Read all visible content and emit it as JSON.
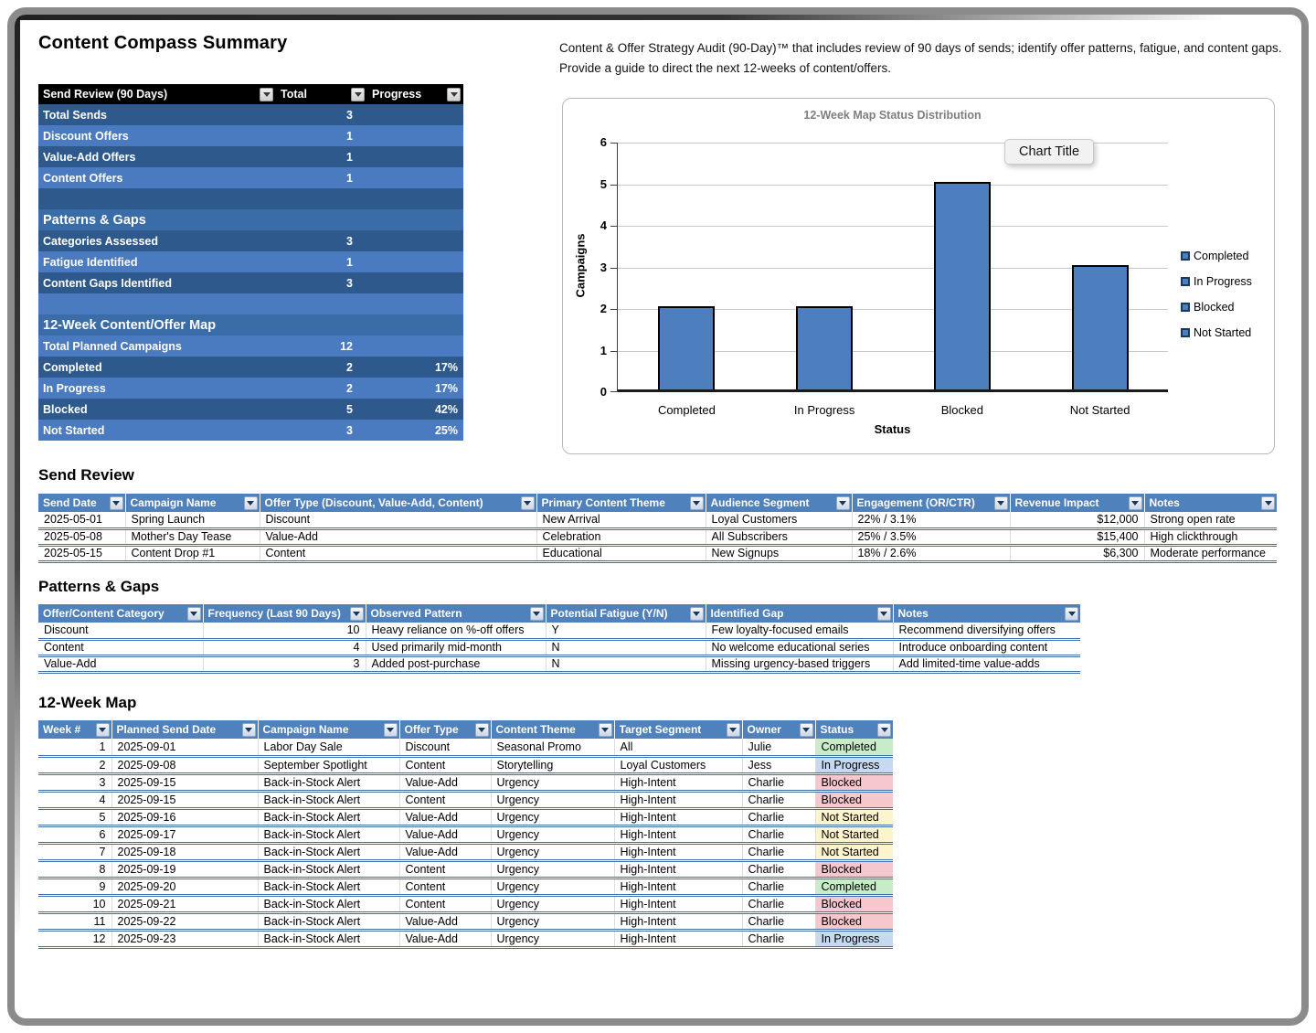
{
  "summary": {
    "title": "Content Compass Summary",
    "table": {
      "col_headers": [
        "Send Review (90 Days)",
        "Total",
        "Progress"
      ],
      "rows": [
        {
          "label": "Total Sends",
          "total": "3",
          "progress": "",
          "style": "dark"
        },
        {
          "label": "Discount Offers",
          "total": "1",
          "progress": "",
          "style": "light"
        },
        {
          "label": "Value-Add Offers",
          "total": "1",
          "progress": "",
          "style": "dark"
        },
        {
          "label": "Content Offers",
          "total": "1",
          "progress": "",
          "style": "light"
        },
        {
          "label": "",
          "total": "",
          "progress": "",
          "style": "dark"
        },
        {
          "label": "Patterns & Gaps",
          "total": "",
          "progress": "",
          "style": "section"
        },
        {
          "label": "Categories Assessed",
          "total": "3",
          "progress": "",
          "style": "dark"
        },
        {
          "label": "Fatigue Identified",
          "total": "1",
          "progress": "",
          "style": "light"
        },
        {
          "label": "Content Gaps Identified",
          "total": "3",
          "progress": "",
          "style": "dark"
        },
        {
          "label": "",
          "total": "",
          "progress": "",
          "style": "light"
        },
        {
          "label": "12-Week Content/Offer Map",
          "total": "",
          "progress": "",
          "style": "section"
        },
        {
          "label": "Total Planned Campaigns",
          "total": "12",
          "progress": "",
          "style": "light"
        },
        {
          "label": "Completed",
          "total": "2",
          "progress": "17%",
          "style": "dark"
        },
        {
          "label": "In Progress",
          "total": "2",
          "progress": "17%",
          "style": "light"
        },
        {
          "label": "Blocked",
          "total": "5",
          "progress": "42%",
          "style": "dark"
        },
        {
          "label": "Not Started",
          "total": "3",
          "progress": "25%",
          "style": "light"
        }
      ]
    }
  },
  "description": "Content & Offer Strategy Audit (90-Day)™ that includes review of 90 days of sends; identify offer patterns, fatigue, and content gaps. Provide a guide to direct the next 12-weeks of content/offers.",
  "chart_data": {
    "type": "bar",
    "title": "12-Week Map Status Distribution",
    "overlay_label": "Chart Title",
    "categories": [
      "Completed",
      "In Progress",
      "Blocked",
      "Not Started"
    ],
    "values": [
      2,
      2,
      5,
      3
    ],
    "xlabel": "Status",
    "ylabel": "Campaigns",
    "ylim": [
      0,
      6
    ],
    "yticks": [
      0,
      1,
      2,
      3,
      4,
      5,
      6
    ],
    "legend": [
      "Completed",
      "In Progress",
      "Blocked",
      "Not Started"
    ],
    "legend_position": "right",
    "bar_color": "#4d7ebd",
    "grid": true
  },
  "send_review": {
    "heading": "Send Review",
    "headers": [
      "Send Date",
      "Campaign Name",
      "Offer Type (Discount, Value-Add, Content)",
      "Primary Content Theme",
      "Audience Segment",
      "Engagement (OR/CTR)",
      "Revenue Impact",
      "Notes"
    ],
    "rows": [
      [
        "2025-05-01",
        "Spring Launch",
        "Discount",
        "New Arrival",
        "Loyal Customers",
        "22% / 3.1%",
        "$12,000",
        "Strong open rate"
      ],
      [
        "2025-05-08",
        "Mother's Day Tease",
        "Value-Add",
        "Celebration",
        "All Subscribers",
        "25% / 3.5%",
        "$15,400",
        "High clickthrough"
      ],
      [
        "2025-05-15",
        "Content Drop #1",
        "Content",
        "Educational",
        "New Signups",
        "18% / 2.6%",
        "$6,300",
        "Moderate performance"
      ]
    ]
  },
  "patterns_gaps": {
    "heading": "Patterns & Gaps",
    "headers": [
      "Offer/Content Category",
      "Frequency (Last 90 Days)",
      "Observed Pattern",
      "Potential Fatigue (Y/N)",
      "Identified Gap",
      "Notes"
    ],
    "rows": [
      [
        "Discount",
        "10",
        "Heavy reliance on %-off offers",
        "Y",
        "Few loyalty-focused emails",
        "Recommend diversifying offers"
      ],
      [
        "Content",
        "4",
        "Used primarily mid-month",
        "N",
        "No welcome educational series",
        "Introduce onboarding content"
      ],
      [
        "Value-Add",
        "3",
        "Added post-purchase",
        "N",
        "Missing urgency-based triggers",
        "Add limited-time value-adds"
      ]
    ]
  },
  "twelve_week_map": {
    "heading": "12-Week Map",
    "headers": [
      "Week #",
      "Planned Send Date",
      "Campaign Name",
      "Offer Type",
      "Content Theme",
      "Target Segment",
      "Owner",
      "Status"
    ],
    "rows": [
      [
        "1",
        "2025-09-01",
        "Labor Day Sale",
        "Discount",
        "Seasonal Promo",
        "All",
        "Julie",
        "Completed"
      ],
      [
        "2",
        "2025-09-08",
        "September Spotlight",
        "Content",
        "Storytelling",
        "Loyal Customers",
        "Jess",
        "In Progress"
      ],
      [
        "3",
        "2025-09-15",
        "Back-in-Stock Alert",
        "Value-Add",
        "Urgency",
        "High-Intent",
        "Charlie",
        "Blocked"
      ],
      [
        "4",
        "2025-09-15",
        "Back-in-Stock Alert",
        "Content",
        "Urgency",
        "High-Intent",
        "Charlie",
        "Blocked"
      ],
      [
        "5",
        "2025-09-16",
        "Back-in-Stock Alert",
        "Value-Add",
        "Urgency",
        "High-Intent",
        "Charlie",
        "Not Started"
      ],
      [
        "6",
        "2025-09-17",
        "Back-in-Stock Alert",
        "Value-Add",
        "Urgency",
        "High-Intent",
        "Charlie",
        "Not Started"
      ],
      [
        "7",
        "2025-09-18",
        "Back-in-Stock Alert",
        "Value-Add",
        "Urgency",
        "High-Intent",
        "Charlie",
        "Not Started"
      ],
      [
        "8",
        "2025-09-19",
        "Back-in-Stock Alert",
        "Content",
        "Urgency",
        "High-Intent",
        "Charlie",
        "Blocked"
      ],
      [
        "9",
        "2025-09-20",
        "Back-in-Stock Alert",
        "Content",
        "Urgency",
        "High-Intent",
        "Charlie",
        "Completed"
      ],
      [
        "10",
        "2025-09-21",
        "Back-in-Stock Alert",
        "Content",
        "Urgency",
        "High-Intent",
        "Charlie",
        "Blocked"
      ],
      [
        "11",
        "2025-09-22",
        "Back-in-Stock Alert",
        "Value-Add",
        "Urgency",
        "High-Intent",
        "Charlie",
        "Blocked"
      ],
      [
        "12",
        "2025-09-23",
        "Back-in-Stock Alert",
        "Value-Add",
        "Urgency",
        "High-Intent",
        "Charlie",
        "In Progress"
      ]
    ],
    "status_colors": {
      "Completed": "#c8ebca",
      "In Progress": "#c5d9f1",
      "Blocked": "#f7c7ce",
      "Not Started": "#fdf3cd"
    }
  },
  "colors": {
    "table_header_blue": "#4f81bd",
    "summary_row_dark": "#2e598c",
    "summary_row_light": "#4a7abf",
    "summary_section": "#3a6ca8",
    "summary_header_bg": "#000000",
    "bar_fill": "#4d7ebd"
  }
}
